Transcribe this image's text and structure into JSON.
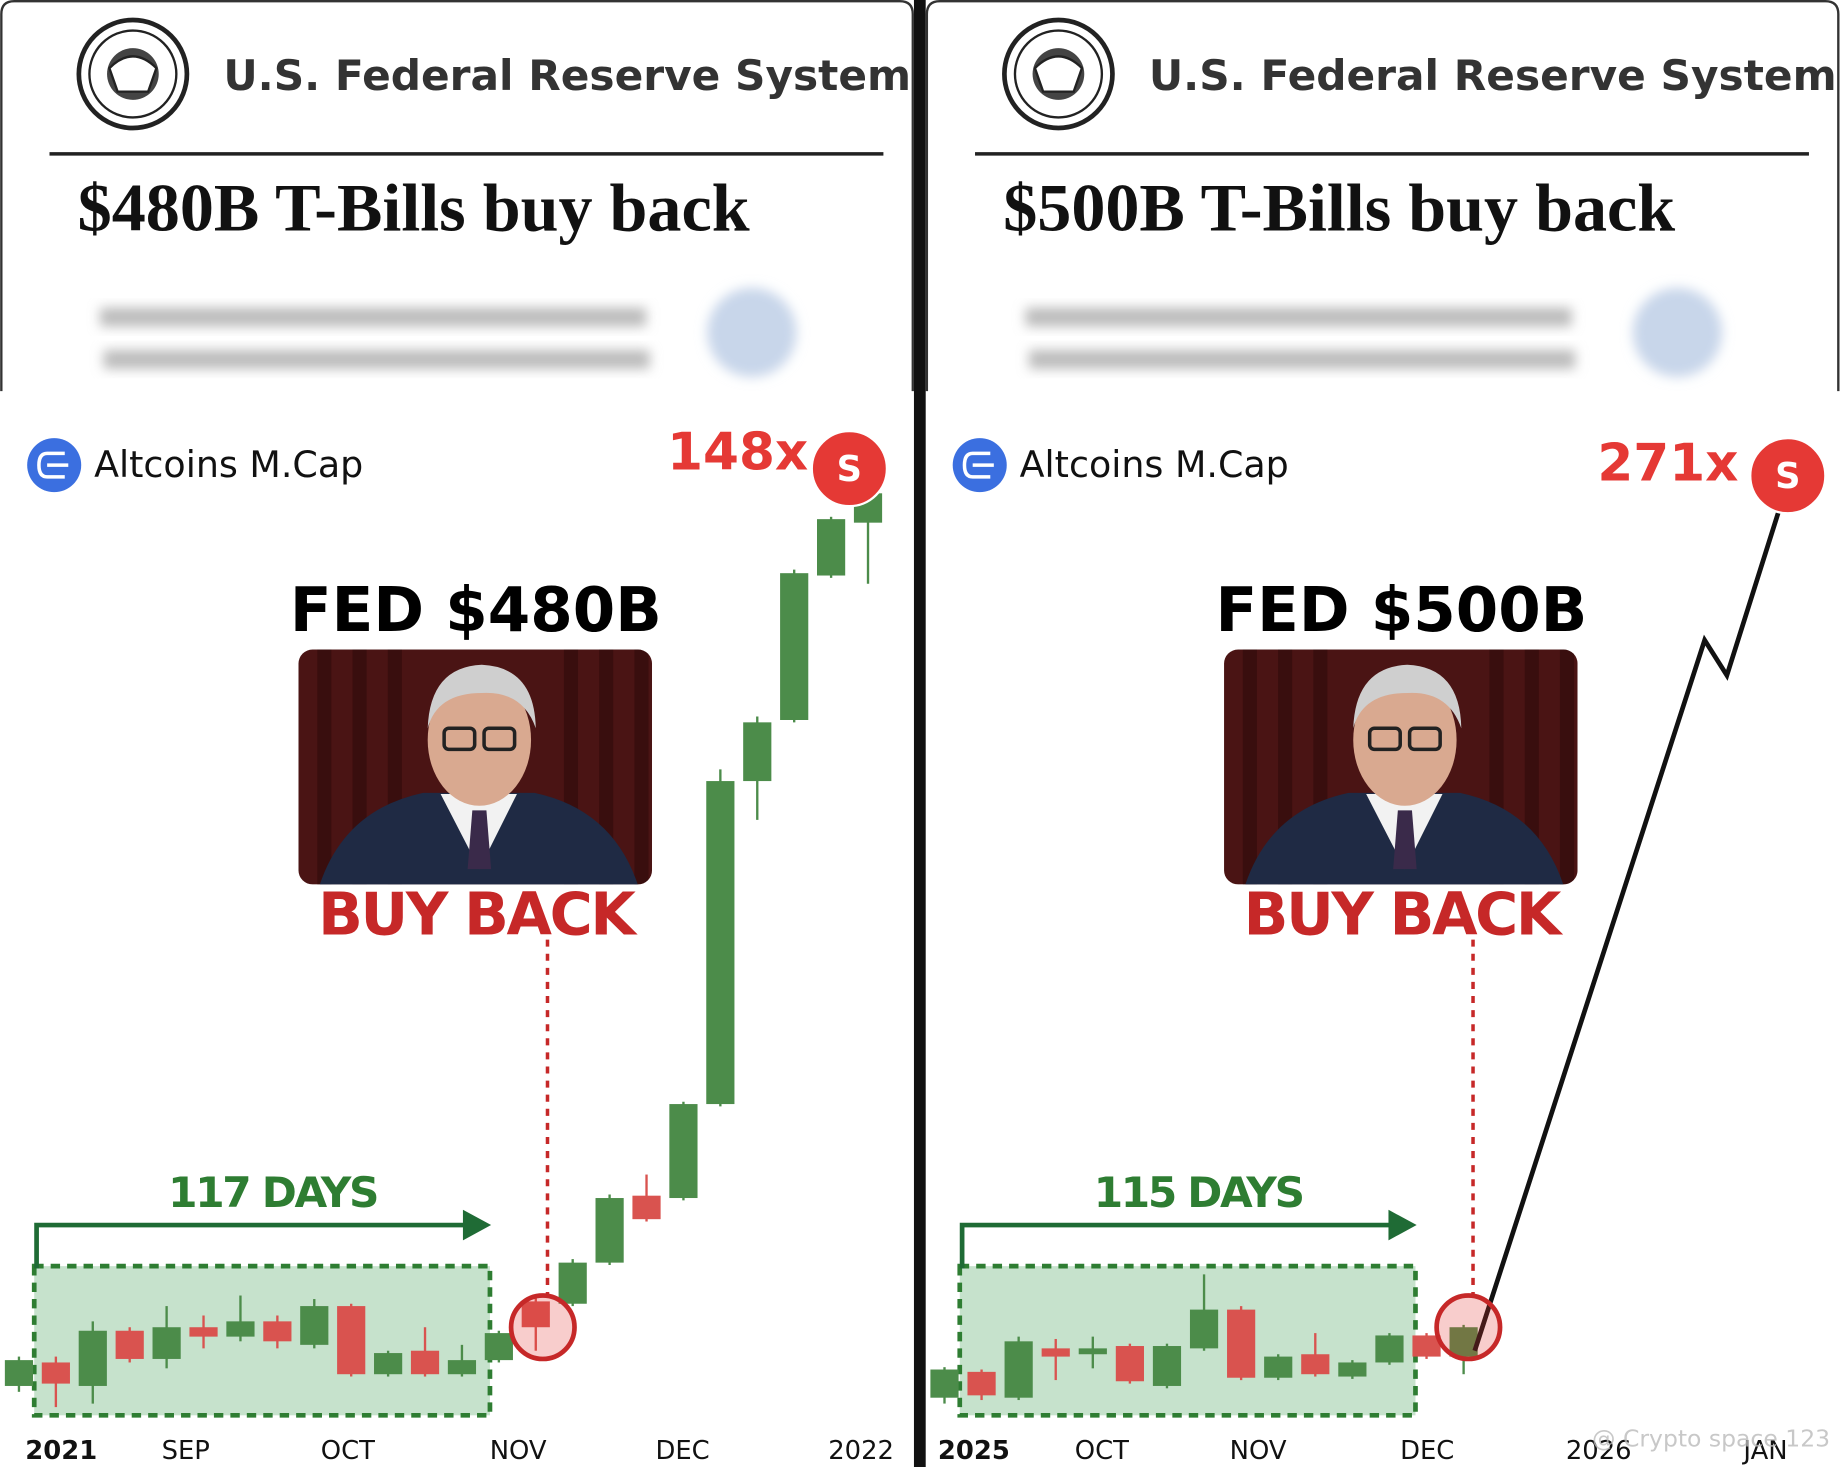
{
  "chart_data": [
    {
      "type": "candlestick",
      "header_title": "U.S. Federal Reserve System",
      "headline": "$480B T-Bills buy back",
      "title": "Altcoins M.Cap",
      "multiplier": "148x",
      "badge": "S",
      "fed_label": "FED $480B",
      "buy_label": "BUY BACK",
      "days_label": "117 DAYS",
      "x_labels": [
        "2021",
        "SEP",
        "OCT",
        "NOV",
        "DEC",
        "2022"
      ],
      "ylim": [
        0,
        850
      ],
      "up_color": "#4c8c4a",
      "down_color": "#d9534f",
      "open": [
        20,
        40,
        20,
        67,
        43,
        70,
        62,
        75,
        55,
        88,
        30,
        50,
        30,
        42,
        92,
        90,
        125,
        182,
        180,
        260,
        535,
        587,
        710,
        755
      ],
      "close": [
        42,
        22,
        67,
        43,
        70,
        62,
        75,
        58,
        88,
        30,
        48,
        30,
        42,
        65,
        70,
        125,
        180,
        162,
        260,
        535,
        585,
        712,
        758,
        780
      ],
      "high": [
        45,
        45,
        75,
        70,
        88,
        80,
        97,
        80,
        94,
        90,
        50,
        70,
        55,
        67,
        95,
        128,
        183,
        200,
        262,
        545,
        590,
        715,
        760,
        785
      ],
      "low": [
        15,
        2,
        5,
        40,
        35,
        52,
        58,
        52,
        52,
        28,
        28,
        28,
        28,
        40,
        50,
        88,
        123,
        160,
        178,
        258,
        502,
        585,
        708,
        703
      ]
    },
    {
      "type": "candlestick",
      "header_title": "U.S. Federal Reserve System",
      "headline": "$500B T-Bills buy back",
      "title": "Altcoins M.Cap",
      "multiplier": "271x",
      "badge": "S",
      "fed_label": "FED $500B",
      "buy_label": "BUY BACK",
      "days_label": "115 DAYS",
      "x_labels": [
        "2025",
        "OCT",
        "NOV",
        "DEC",
        "2026",
        "JAN"
      ],
      "ylim": [
        0,
        850
      ],
      "up_color": "#4c8c4a",
      "down_color": "#d9534f",
      "open": [
        10,
        32,
        10,
        52,
        47,
        54,
        20,
        52,
        85,
        27,
        47,
        28,
        40,
        63,
        45
      ],
      "close": [
        34,
        12,
        58,
        45,
        52,
        24,
        54,
        85,
        27,
        45,
        30,
        40,
        63,
        45,
        70
      ],
      "high": [
        36,
        34,
        62,
        60,
        62,
        56,
        56,
        115,
        88,
        47,
        65,
        42,
        65,
        65,
        72
      ],
      "low": [
        5,
        8,
        8,
        25,
        35,
        22,
        18,
        50,
        25,
        25,
        28,
        26,
        38,
        43,
        30
      ],
      "projection": {
        "x": [
          14.3,
          20.5,
          21.1,
          22.8
        ],
        "values": [
          50,
          655,
          625,
          795
        ],
        "color": "#111111"
      },
      "watermark": "@ Crypto space 123"
    }
  ]
}
